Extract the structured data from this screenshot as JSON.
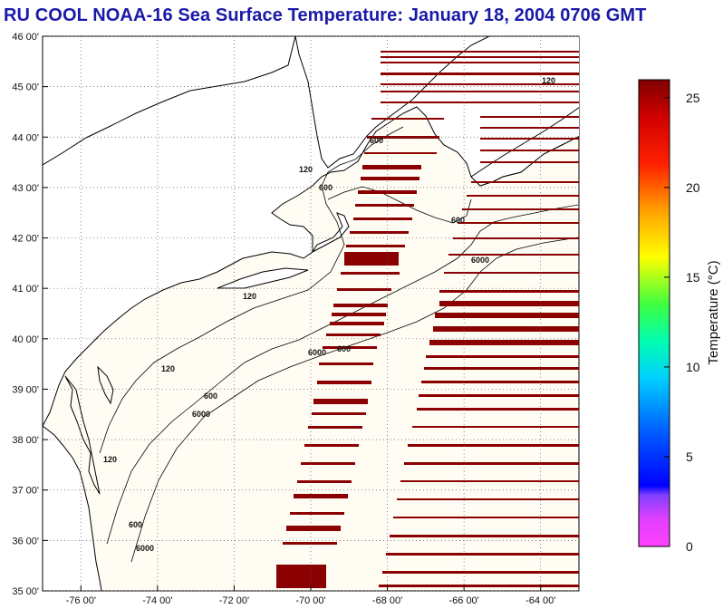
{
  "title": "RU COOL  NOAA-16  Sea Surface Temperature:  January 18, 2004 0706 GMT",
  "lon_ticks": [
    "-76 00'",
    "-74 00'",
    "-72 00'",
    "-70 00'",
    "-68 00'",
    "-66 00'",
    "-64 00'"
  ],
  "lat_ticks": [
    "46 00'",
    "45 00'",
    "44 00'",
    "43 00'",
    "42 00'",
    "41 00'",
    "40 00'",
    "39 00'",
    "38 00'",
    "37 00'",
    "36 00'",
    "35 00'"
  ],
  "lon_values": [
    -76,
    -74,
    -72,
    -70,
    -68,
    -66,
    -64
  ],
  "lat_values": [
    46,
    45,
    44,
    43,
    42,
    41,
    40,
    39,
    38,
    37,
    36,
    35
  ],
  "contour_labels": [
    "120",
    "600",
    "6000",
    "600",
    "120",
    "600",
    "6000",
    "120",
    "600",
    "6000",
    "120",
    "600",
    "6000",
    "120",
    "600"
  ],
  "colorbar": {
    "label": "Temperature (°C)",
    "ticks": [
      "0",
      "5",
      "10",
      "15",
      "20",
      "25"
    ],
    "tick_values": [
      0,
      5,
      10,
      15,
      20,
      25
    ],
    "min": 0,
    "max": 26
  },
  "colors": {
    "title": "#1a1aa8",
    "ocean_background": "#fffdf3",
    "swath": "#8b0000",
    "coast": "#000000"
  }
}
